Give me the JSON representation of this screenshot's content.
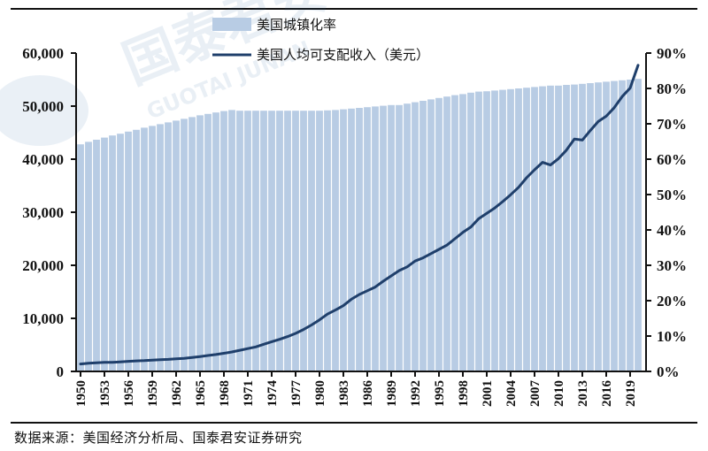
{
  "source": "数据来源：美国经济分析局、国泰君安证券研究",
  "watermark": {
    "cn": "国泰君安",
    "en": "GUOTAI JUNAN"
  },
  "colors": {
    "bar": "#b8cce4",
    "line": "#1f3f6b",
    "axis": "#111111"
  },
  "chart_data": {
    "type": "bar+line",
    "title": "",
    "legend": [
      {
        "label": "美国城镇化率",
        "type": "bar",
        "axis": "right"
      },
      {
        "label": "美国人均可支配收入（美元）",
        "type": "line",
        "axis": "left"
      }
    ],
    "legend_position": "top-center",
    "left_axis": {
      "label": "",
      "min": 0,
      "max": 60000,
      "ticks": [
        "0",
        "10,000",
        "20,000",
        "30,000",
        "40,000",
        "50,000",
        "60,000"
      ]
    },
    "right_axis": {
      "label": "",
      "min": 0,
      "max": 90,
      "ticks": [
        "0%",
        "10%",
        "20%",
        "30%",
        "40%",
        "50%",
        "60%",
        "70%",
        "80%",
        "90%"
      ]
    },
    "x_tick_labels": [
      "1950",
      "1953",
      "1956",
      "1959",
      "1962",
      "1965",
      "1968",
      "1971",
      "1974",
      "1977",
      "1980",
      "1983",
      "1986",
      "1989",
      "1992",
      "1995",
      "1998",
      "2001",
      "2004",
      "2007",
      "2010",
      "2013",
      "2016",
      "2019"
    ],
    "x": [
      1950,
      1951,
      1952,
      1953,
      1954,
      1955,
      1956,
      1957,
      1958,
      1959,
      1960,
      1961,
      1962,
      1963,
      1964,
      1965,
      1966,
      1967,
      1968,
      1969,
      1970,
      1971,
      1972,
      1973,
      1974,
      1975,
      1976,
      1977,
      1978,
      1979,
      1980,
      1981,
      1982,
      1983,
      1984,
      1985,
      1986,
      1987,
      1988,
      1989,
      1990,
      1991,
      1992,
      1993,
      1994,
      1995,
      1996,
      1997,
      1998,
      1999,
      2000,
      2001,
      2002,
      2003,
      2004,
      2005,
      2006,
      2007,
      2008,
      2009,
      2010,
      2011,
      2012,
      2013,
      2014,
      2015,
      2016,
      2017,
      2018,
      2019,
      2020
    ],
    "series": [
      {
        "name": "美国城镇化率",
        "unit": "%",
        "values": [
          64.2,
          64.9,
          65.5,
          66.1,
          66.7,
          67.2,
          67.8,
          68.3,
          68.9,
          69.4,
          69.9,
          70.4,
          70.9,
          71.4,
          71.9,
          72.4,
          72.8,
          73.2,
          73.6,
          73.9,
          73.7,
          73.7,
          73.7,
          73.7,
          73.7,
          73.7,
          73.7,
          73.7,
          73.7,
          73.7,
          73.7,
          73.8,
          73.9,
          74.1,
          74.3,
          74.5,
          74.7,
          74.9,
          75.1,
          75.3,
          75.3,
          75.7,
          76.1,
          76.5,
          76.9,
          77.3,
          77.7,
          78.1,
          78.4,
          78.8,
          79.1,
          79.2,
          79.4,
          79.6,
          79.8,
          80.0,
          80.2,
          80.4,
          80.6,
          80.8,
          80.8,
          81.0,
          81.1,
          81.3,
          81.5,
          81.7,
          81.9,
          82.1,
          82.3,
          82.5,
          82.7
        ]
      },
      {
        "name": "美国人均可支配收入（美元）",
        "unit": "USD",
        "values": [
          1400,
          1550,
          1620,
          1700,
          1720,
          1800,
          1900,
          1990,
          2040,
          2130,
          2200,
          2260,
          2370,
          2450,
          2630,
          2800,
          3000,
          3180,
          3420,
          3660,
          3990,
          4300,
          4610,
          5120,
          5600,
          6050,
          6560,
          7160,
          7900,
          8750,
          9720,
          10800,
          11560,
          12400,
          13600,
          14500,
          15200,
          15900,
          17000,
          18000,
          19000,
          19700,
          20800,
          21400,
          22200,
          23000,
          23800,
          25000,
          26200,
          27200,
          28800,
          29800,
          30800,
          32000,
          33300,
          34700,
          36500,
          38000,
          39400,
          38900,
          40100,
          41700,
          43800,
          43600,
          45400,
          47100,
          48100,
          49700,
          51800,
          53400,
          57700
        ]
      }
    ]
  }
}
